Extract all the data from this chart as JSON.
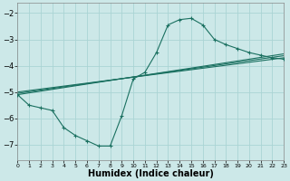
{
  "bg_color": "#cce8e8",
  "grid_color": "#aad4d4",
  "line_color": "#1a7060",
  "xlabel": "Humidex (Indice chaleur)",
  "xlim": [
    0,
    23
  ],
  "ylim": [
    -7.6,
    -1.6
  ],
  "yticks": [
    -7,
    -6,
    -5,
    -4,
    -3,
    -2
  ],
  "xticks": [
    0,
    1,
    2,
    3,
    4,
    5,
    6,
    7,
    8,
    9,
    10,
    11,
    12,
    13,
    14,
    15,
    16,
    17,
    18,
    19,
    20,
    21,
    22,
    23
  ],
  "main_x": [
    0,
    1,
    2,
    3,
    4,
    5,
    6,
    7,
    8,
    9,
    10,
    11,
    12,
    13,
    14,
    15,
    16,
    17,
    18,
    19,
    20,
    21,
    22,
    23
  ],
  "main_y": [
    -5.1,
    -5.5,
    -5.6,
    -5.7,
    -6.35,
    -6.65,
    -6.85,
    -7.05,
    -7.05,
    -5.9,
    -4.5,
    -4.25,
    -3.5,
    -2.45,
    -2.25,
    -2.2,
    -2.45,
    -3.0,
    -3.2,
    -3.35,
    -3.5,
    -3.6,
    -3.7,
    -3.75
  ],
  "reg_lines": [
    {
      "x0": 0,
      "y0": -5.1,
      "x1": 23,
      "y1": -3.55
    },
    {
      "x0": 0,
      "y0": -5.05,
      "x1": 23,
      "y1": -3.62
    },
    {
      "x0": 0,
      "y0": -5.0,
      "x1": 23,
      "y1": -3.7
    }
  ],
  "xlabel_fontsize": 7,
  "ytick_fontsize": 6,
  "xtick_fontsize": 4.5
}
